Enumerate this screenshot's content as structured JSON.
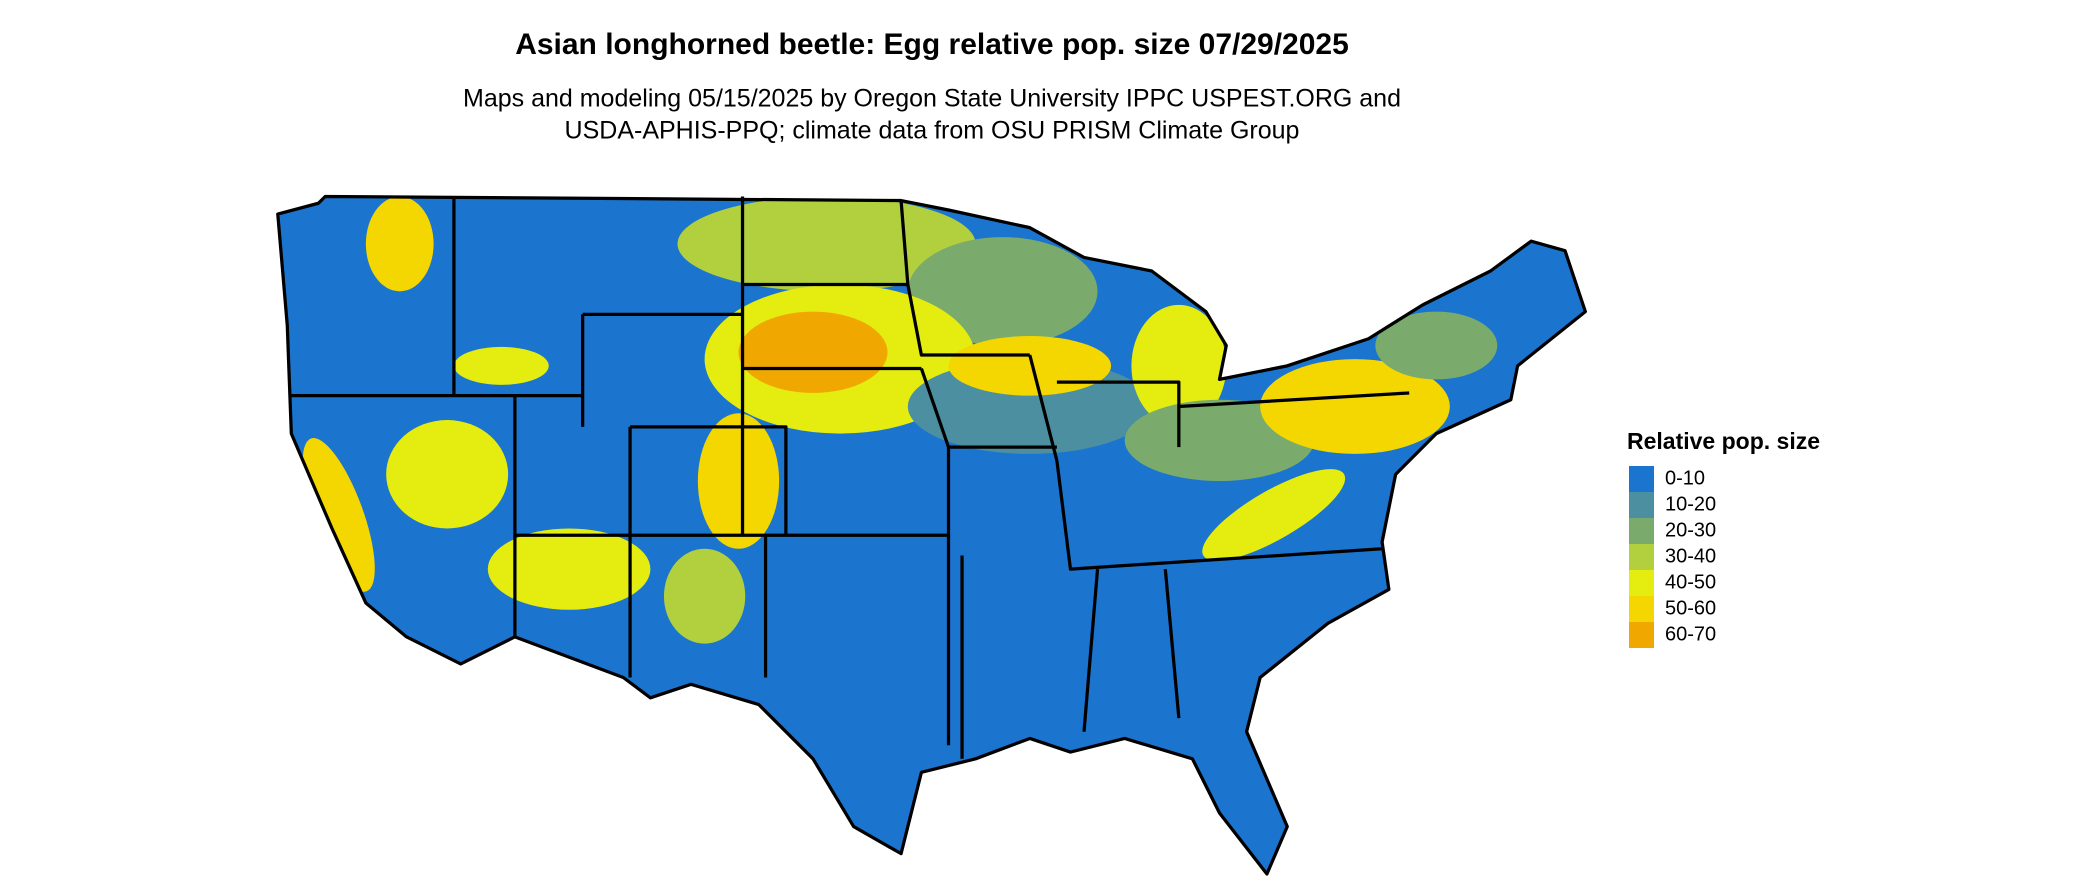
{
  "header": {
    "title": "Asian longhorned beetle: Egg relative pop. size 07/29/2025",
    "subtitle": [
      "Maps and modeling 05/15/2025 by Oregon State University IPPC USPEST.ORG and",
      "USDA-APHIS-PPQ; climate data from OSU PRISM Climate Group"
    ]
  },
  "legend": {
    "title": "Relative pop. size",
    "items": [
      {
        "label": "0-10",
        "color": "#1b75cf"
      },
      {
        "label": "10-20",
        "color": "#4b8fa1"
      },
      {
        "label": "20-30",
        "color": "#7bab6c"
      },
      {
        "label": "30-40",
        "color": "#b2cf3e"
      },
      {
        "label": "40-50",
        "color": "#e4ec10"
      },
      {
        "label": "50-60",
        "color": "#f4d600"
      },
      {
        "label": "60-70",
        "color": "#f0a800"
      }
    ]
  }
}
